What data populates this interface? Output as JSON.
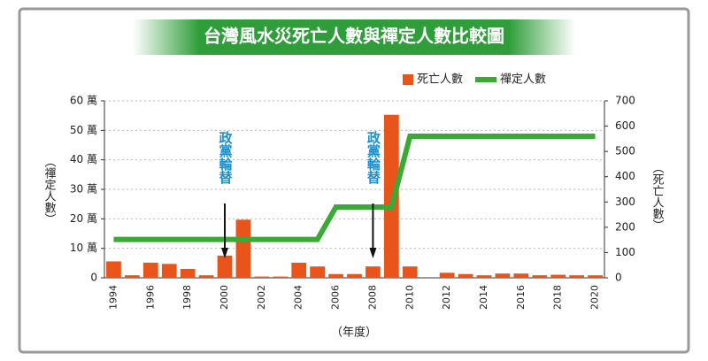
{
  "chart_data": {
    "type": "combo",
    "title": "台灣風水災死亡人數與禪定人數比較圖",
    "x_label": "（年度）",
    "y_label": "（禪定人數）",
    "y2_label": "（死亡人數）",
    "categories": [
      "1994",
      null,
      "1996",
      null,
      "1998",
      null,
      "2000",
      null,
      "2002",
      null,
      "2004",
      null,
      "2006",
      null,
      "2008",
      null,
      "2010",
      null,
      "2012",
      null,
      "2014",
      null,
      "2016",
      null,
      "2018",
      null,
      "2020"
    ],
    "series": [
      {
        "name": "死亡人數",
        "type": "bar",
        "axis": "y2",
        "color": "#e8541a",
        "values": [
          65,
          10,
          60,
          55,
          35,
          10,
          88,
          230,
          5,
          5,
          60,
          45,
          15,
          15,
          45,
          645,
          45,
          0,
          20,
          15,
          10,
          17,
          17,
          10,
          12,
          10,
          10
        ]
      },
      {
        "name": "禪定人數",
        "type": "line",
        "color": "#3aa935",
        "values": [
          13,
          13,
          13,
          13,
          13,
          13,
          13,
          13,
          13,
          13,
          13,
          13,
          24,
          24,
          24,
          24,
          48,
          48,
          48,
          48,
          48,
          48,
          48,
          48,
          48,
          48,
          48
        ]
      }
    ],
    "ylim": [
      0,
      60
    ],
    "yticks": [
      0,
      {
        "value": 10,
        "label": "10 萬"
      },
      {
        "value": 20,
        "label": "20 萬"
      },
      {
        "value": 30,
        "label": "30 萬"
      },
      {
        "value": 40,
        "label": "40 萬"
      },
      {
        "value": 50,
        "label": "50 萬"
      },
      {
        "value": 60,
        "label": "60 萬"
      }
    ],
    "y2lim": [
      0,
      700
    ],
    "y2ticks": [
      0,
      100,
      200,
      300,
      400,
      500,
      600,
      700
    ],
    "grid": true,
    "legend": "top-right",
    "annotations": [
      {
        "text": "政黨輪替",
        "x": "2000"
      },
      {
        "text": "政黨輪替",
        "x": "2008"
      }
    ]
  }
}
